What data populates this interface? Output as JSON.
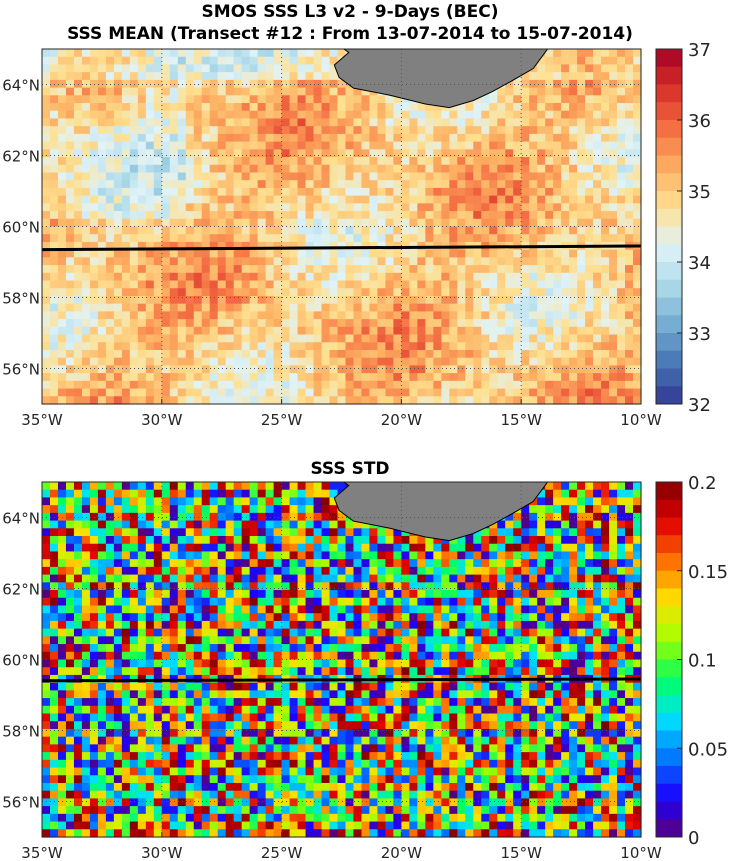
{
  "title_line1": "SMOS SSS L3 v2 - 9-Days (BEC)",
  "title_line2": "SSS MEAN (Transect #12 : From 13-07-2014 to 15-07-2014)",
  "title_std": "SSS STD",
  "colors": {
    "land": "#808080",
    "transect": "#000000",
    "grid": "#555555",
    "mean_colormap": [
      "#313695",
      "#4575b4",
      "#74add1",
      "#abd9e9",
      "#e0f3f8",
      "#fee090",
      "#fdae61",
      "#f46d43",
      "#d73027",
      "#a50026"
    ],
    "std_colormap": [
      "#5a0078",
      "#1c00ff",
      "#0078ff",
      "#00e0ff",
      "#00ff60",
      "#a0ff00",
      "#ffe000",
      "#ff7000",
      "#e00000",
      "#800000"
    ]
  },
  "chart_data": [
    {
      "type": "heatmap",
      "title": "SSS MEAN (Transect #12 : From 13-07-2014 to 15-07-2014)",
      "variable": "SSS MEAN",
      "xlim": [
        -35,
        -10
      ],
      "ylim": [
        55,
        65
      ],
      "x_ticks": [
        "35°W",
        "30°W",
        "25°W",
        "20°W",
        "15°W",
        "10°W"
      ],
      "y_ticks": [
        "56°N",
        "58°N",
        "60°N",
        "62°N",
        "64°N"
      ],
      "colorbar": {
        "min": 32,
        "max": 37,
        "ticks": [
          "32",
          "33",
          "34",
          "35",
          "36",
          "37"
        ]
      },
      "transect": {
        "lon": [
          -35,
          -10
        ],
        "lat": [
          59.35,
          59.45
        ]
      },
      "value_range_estimate": [
        33.5,
        36.5
      ]
    },
    {
      "type": "heatmap",
      "title": "SSS STD",
      "variable": "SSS STD",
      "xlim": [
        -35,
        -10
      ],
      "ylim": [
        55,
        65
      ],
      "x_ticks": [
        "35°W",
        "30°W",
        "25°W",
        "20°W",
        "15°W",
        "10°W"
      ],
      "y_ticks": [
        "56°N",
        "58°N",
        "60°N",
        "62°N",
        "64°N"
      ],
      "colorbar": {
        "min": 0,
        "max": 0.2,
        "ticks": [
          "0",
          "0.05",
          "0.1",
          "0.15",
          "0.2"
        ]
      },
      "transect": {
        "lon": [
          -35,
          -10
        ],
        "lat": [
          59.4,
          59.45
        ]
      },
      "value_range_estimate": [
        0,
        0.2
      ]
    }
  ]
}
